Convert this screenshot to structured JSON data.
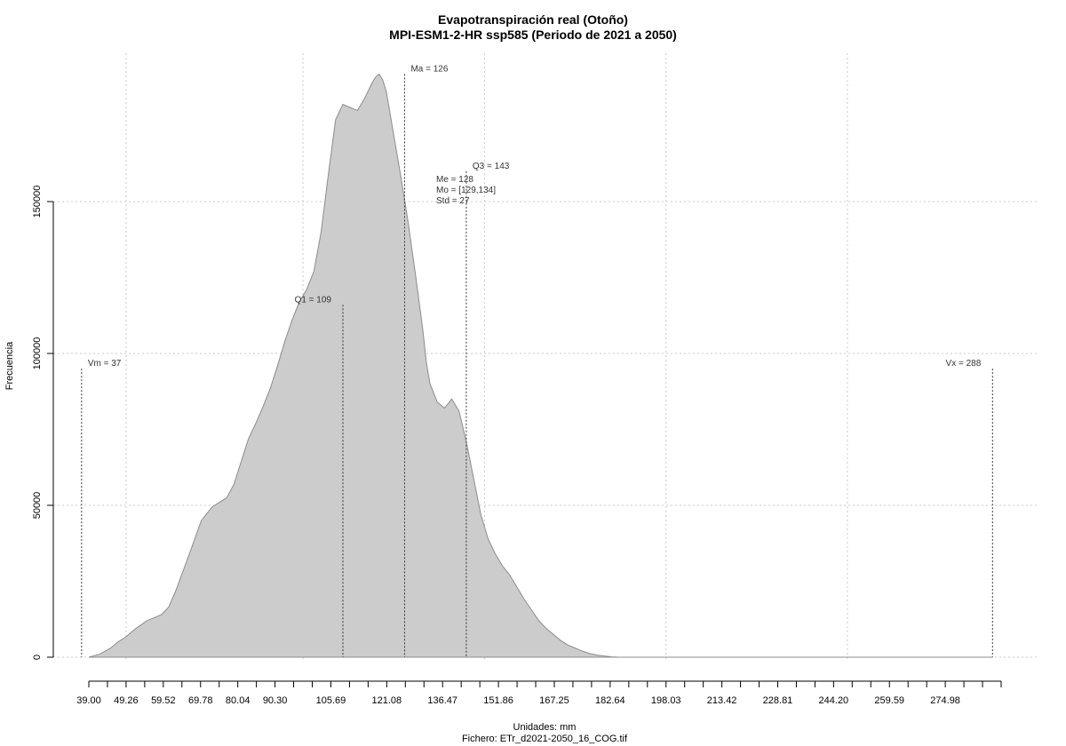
{
  "chart_data": {
    "type": "area",
    "title": "Evapotranspiración real (Otoño)",
    "subtitle": "MPI-ESM1-2-HR ssp585 (Periodo de 2021 a 2050)",
    "xlabel": "Unidades: mm",
    "ylabel": "Frecuencia",
    "footer": "Fichero: ETr_d2021-2050_16_COG.tif",
    "xlim": [
      39.0,
      290.3
    ],
    "ylim": [
      0,
      190000
    ],
    "grid": true,
    "fill_color": "#cccccc",
    "stroke_color": "#8c8c8c",
    "x_ticks": [
      "39.00",
      "49.26",
      "59.52",
      "69.78",
      "80.04",
      "90.30",
      "105.69",
      "121.08",
      "136.47",
      "151.86",
      "167.25",
      "182.64",
      "198.03",
      "213.42",
      "228.81",
      "244.20",
      "259.59",
      "274.98"
    ],
    "x_minor_ticks": [
      39.0,
      44.13,
      49.26,
      54.39,
      59.52,
      64.65,
      69.78,
      74.91,
      80.04,
      85.17,
      90.3,
      95.43,
      100.56,
      105.69,
      110.82,
      115.95,
      121.08,
      126.21,
      131.34,
      136.47,
      141.6,
      146.73,
      151.86,
      156.99,
      162.12,
      167.25,
      172.38,
      177.51,
      182.64,
      187.77,
      192.9,
      198.03,
      203.16,
      208.29,
      213.42,
      218.55,
      223.68,
      228.81,
      233.94,
      239.07,
      244.2,
      249.33,
      254.46,
      259.59,
      264.72,
      269.85,
      274.98,
      280.11,
      285.24,
      290.37
    ],
    "x_grid": [
      49.26,
      98.0,
      148.0,
      198.03,
      248.0
    ],
    "y_ticks": [
      0,
      50000,
      100000,
      150000
    ],
    "y_tick_labels": [
      "0",
      "50000",
      "100000",
      "150000"
    ],
    "series": [
      {
        "x": [
          39.0,
          42,
          45,
          47,
          49,
          52,
          55,
          57,
          59,
          61,
          63,
          65,
          67,
          70,
          73,
          75,
          77,
          79,
          81,
          83,
          85,
          87,
          89,
          91,
          93,
          95,
          97,
          99,
          101,
          103,
          105,
          107,
          109,
          111,
          113,
          115,
          117,
          118,
          119,
          120,
          121,
          122,
          123,
          124,
          125,
          127,
          129,
          131,
          132,
          133,
          135,
          137,
          139,
          141,
          143,
          145,
          147,
          149,
          151,
          153,
          155,
          157,
          159,
          161,
          163,
          165,
          167,
          169,
          171,
          173,
          175,
          177,
          179,
          181,
          183,
          185,
          187,
          190,
          193,
          196,
          199,
          202,
          205,
          208,
          212,
          220,
          240,
          260,
          280,
          288
        ],
        "y": [
          0,
          1000,
          3000,
          5000,
          6500,
          9500,
          12000,
          13000,
          14000,
          16500,
          22000,
          28500,
          35000,
          45000,
          49500,
          51000,
          52500,
          57000,
          64500,
          72000,
          77000,
          82500,
          88500,
          96000,
          104000,
          111000,
          117000,
          121000,
          127000,
          140000,
          159000,
          177000,
          182000,
          181000,
          180000,
          184000,
          189000,
          191000,
          192000,
          190000,
          186000,
          179000,
          172000,
          165000,
          158000,
          143000,
          126000,
          108000,
          97000,
          90000,
          84000,
          82000,
          85000,
          81000,
          71000,
          59000,
          47000,
          39000,
          34000,
          30000,
          27000,
          23000,
          19000,
          15500,
          12000,
          9500,
          7500,
          5500,
          4000,
          3000,
          2000,
          1200,
          700,
          400,
          100,
          0,
          0,
          0,
          0,
          0,
          0,
          0,
          0,
          0,
          0,
          0,
          0,
          0,
          0,
          0
        ]
      }
    ],
    "vlines": [
      {
        "x": 37,
        "label": "Vm = 37",
        "top": 95000,
        "label_side": "right"
      },
      {
        "x": 109,
        "label": "Q1 = 109",
        "top": 116000,
        "label_side": "left"
      },
      {
        "x": 126,
        "label": "Ma = 126",
        "top": 192000,
        "label_side": "right"
      },
      {
        "x": 143,
        "label": "Q3 = 143",
        "top": 160000,
        "label_side": "right"
      },
      {
        "x": 288,
        "label": "Vx = 288",
        "top": 95000,
        "label_side": "left"
      }
    ],
    "stats": [
      "Me = 128",
      "Mo = [129,134]",
      "Std = 27"
    ]
  }
}
